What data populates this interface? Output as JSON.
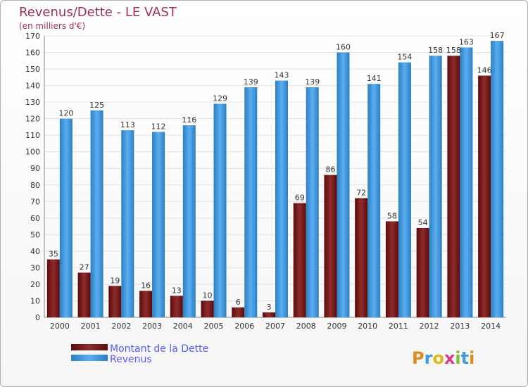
{
  "chart_data": {
    "type": "bar",
    "title": "Revenus/Dette - LE VAST",
    "subtitle": "(en milliers d'€)",
    "categories": [
      "2000",
      "2001",
      "2002",
      "2003",
      "2004",
      "2005",
      "2006",
      "2007",
      "2008",
      "2009",
      "2010",
      "2011",
      "2012",
      "2013",
      "2014"
    ],
    "series": [
      {
        "name": "Montant de la Dette",
        "color": "#7a1a1a",
        "values": [
          35,
          27,
          19,
          16,
          13,
          10,
          6,
          3,
          69,
          86,
          72,
          58,
          54,
          158,
          146
        ]
      },
      {
        "name": "Revenus",
        "color": "#3d9be0",
        "values": [
          120,
          125,
          113,
          112,
          116,
          129,
          139,
          143,
          139,
          160,
          141,
          154,
          158,
          163,
          167
        ]
      }
    ],
    "ylim": [
      0,
      170
    ],
    "yticks": [
      0,
      10,
      20,
      30,
      40,
      50,
      60,
      70,
      80,
      90,
      100,
      110,
      120,
      130,
      140,
      150,
      160,
      170
    ],
    "grid": true,
    "legend_position": "bottom-left"
  },
  "branding": {
    "logo_text": "Proxiti"
  }
}
